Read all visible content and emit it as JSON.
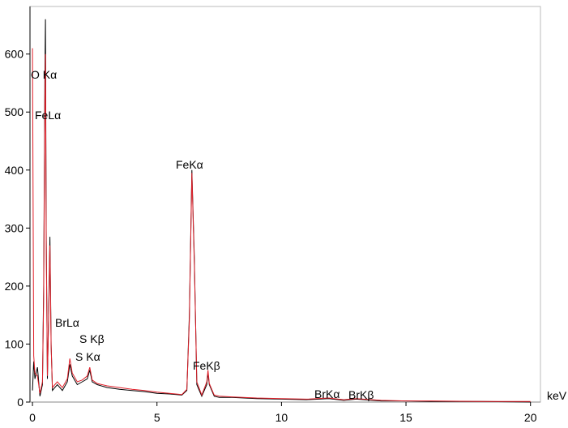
{
  "chart_data": {
    "type": "line",
    "x_label": "keV",
    "x": [
      0,
      0.05,
      0.1,
      0.2,
      0.3,
      0.4,
      0.45,
      0.5,
      0.52,
      0.55,
      0.6,
      0.65,
      0.7,
      0.75,
      0.8,
      0.9,
      1.0,
      1.2,
      1.4,
      1.5,
      1.6,
      1.8,
      2.0,
      2.2,
      2.3,
      2.4,
      2.6,
      3.0,
      3.5,
      4.0,
      4.5,
      5.0,
      5.5,
      6.0,
      6.2,
      6.3,
      6.4,
      6.5,
      6.6,
      6.8,
      7.0,
      7.05,
      7.1,
      7.3,
      7.5,
      8,
      9,
      10,
      11,
      11.9,
      12.5,
      13,
      14,
      15,
      16,
      18,
      20
    ],
    "series": [
      {
        "color": "#000000",
        "values": [
          20,
          70,
          40,
          60,
          10,
          30,
          200,
          560,
          660,
          300,
          40,
          150,
          285,
          100,
          20,
          25,
          30,
          20,
          35,
          65,
          45,
          30,
          35,
          40,
          55,
          35,
          30,
          25,
          22,
          20,
          18,
          15,
          14,
          12,
          20,
          150,
          400,
          250,
          30,
          10,
          30,
          50,
          30,
          10,
          8,
          8,
          6,
          5,
          4,
          6,
          3,
          5,
          2,
          2,
          1,
          1,
          0
        ]
      },
      {
        "color": "#e0202a",
        "values": [
          610,
          80,
          50,
          45,
          15,
          35,
          180,
          520,
          600,
          280,
          45,
          140,
          270,
          95,
          25,
          30,
          35,
          25,
          40,
          75,
          50,
          35,
          38,
          45,
          60,
          38,
          32,
          28,
          25,
          22,
          20,
          17,
          15,
          13,
          22,
          140,
          395,
          240,
          35,
          12,
          35,
          55,
          32,
          12,
          10,
          9,
          7,
          6,
          5,
          7,
          4,
          6,
          3,
          2,
          2,
          1,
          1
        ]
      }
    ],
    "annotations": [
      "O Kα",
      "FeLα",
      "FeKα",
      "BrLα",
      "S Kβ",
      "S Kα",
      "FeKβ",
      "BrKα",
      "BrKβ"
    ],
    "xlim": [
      -0.1,
      20.4
    ],
    "ylim": [
      0,
      682
    ],
    "xticks": [
      0,
      5,
      10,
      15,
      20
    ],
    "yticks": [
      0,
      100,
      200,
      300,
      400,
      500,
      600
    ]
  }
}
